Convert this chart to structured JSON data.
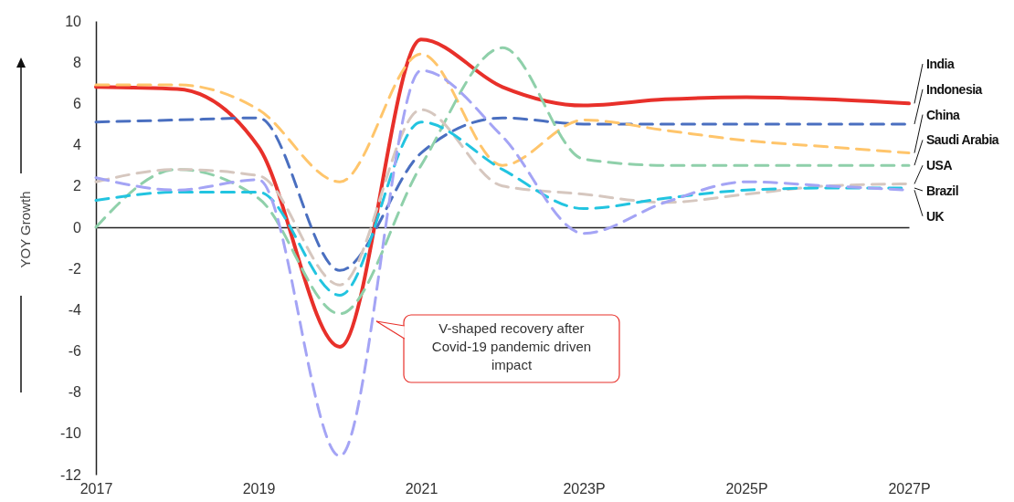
{
  "chart_data": {
    "type": "line",
    "ylabel": "YOY Growth",
    "x": [
      2017,
      2018,
      2019,
      2020,
      2021,
      2022,
      2023,
      2024,
      2025,
      2026,
      2027
    ],
    "xlim": [
      2017,
      2027
    ],
    "xticks": [
      2017,
      2019,
      2021,
      {
        "value": 2023,
        "label": "2023P"
      },
      {
        "value": 2025,
        "label": "2025P"
      },
      {
        "value": 2027,
        "label": "2027P"
      }
    ],
    "ylim": [
      -12,
      10
    ],
    "yticks": [
      -12,
      -10,
      -8,
      -6,
      -4,
      -2,
      0,
      2,
      4,
      6,
      8,
      10
    ],
    "legend": "right",
    "marker": "none",
    "series": [
      {
        "name": "India",
        "color": "#e8302a",
        "line_style": "solid",
        "values": [
          6.8,
          6.7,
          3.9,
          -5.8,
          9.1,
          6.8,
          5.9,
          6.2,
          6.3,
          6.2,
          6.0
        ]
      },
      {
        "name": "Indonesia",
        "color": "#4a6fc0",
        "line_style": "dashed",
        "values": [
          5.1,
          5.2,
          5.3,
          -2.1,
          3.6,
          5.3,
          5.0,
          5.0,
          5.0,
          5.0,
          5.0
        ]
      },
      {
        "name": "China",
        "color": "#ffc56b",
        "line_style": "dashed",
        "values": [
          6.9,
          6.9,
          5.7,
          2.2,
          8.4,
          3.0,
          5.2,
          4.7,
          4.2,
          3.9,
          3.6
        ]
      },
      {
        "name": "Saudi Arabia",
        "color": "#8fd0aa",
        "line_style": "dashed",
        "values": [
          0,
          2.8,
          1.4,
          -4.2,
          3.0,
          8.7,
          3.3,
          3.0,
          3.0,
          3.0,
          3.0
        ]
      },
      {
        "name": "USA",
        "color": "#d6c7bf",
        "line_style": "dashed",
        "values": [
          2.2,
          2.8,
          2.5,
          -2.8,
          5.7,
          2.0,
          1.6,
          1.2,
          1.6,
          2.0,
          2.1
        ]
      },
      {
        "name": "Brazil",
        "color": "#22c4e0",
        "line_style": "dashed",
        "values": [
          1.3,
          1.7,
          1.7,
          -3.3,
          5.1,
          2.8,
          0.9,
          1.4,
          1.8,
          1.9,
          1.9
        ]
      },
      {
        "name": "UK",
        "color": "#a4a4f5",
        "line_style": "dashed",
        "values": [
          2.4,
          1.8,
          2.3,
          -11.1,
          7.6,
          4.4,
          -0.3,
          1.2,
          2.2,
          2.0,
          1.8
        ]
      }
    ],
    "annotations": [
      "V-shaped recovery after Covid-19 pandemic driven impact"
    ]
  }
}
